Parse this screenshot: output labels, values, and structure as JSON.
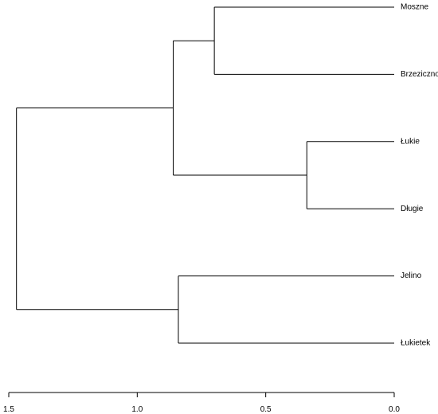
{
  "chart_data": {
    "type": "dendrogram",
    "orientation": "horizontal",
    "x_axis_reversed": true,
    "xlim": [
      1.5,
      0.0
    ],
    "x_ticks": [
      1.5,
      1.0,
      0.5,
      0.0
    ],
    "x_tick_labels": [
      "1.5",
      "1.0",
      "0.5",
      "0.0"
    ],
    "leaves": [
      "Moszne",
      "Brzeziczno",
      "Łukie",
      "Długie",
      "Jelino",
      "Łukietek"
    ],
    "merges": [
      {
        "left": "Moszne",
        "right": "Brzeziczno",
        "height": 0.7
      },
      {
        "left": "Łukie",
        "right": "Długie",
        "height": 0.34
      },
      {
        "left": "Moszne+Brzeziczno",
        "right": "Łukie+Długie",
        "height": 0.86
      },
      {
        "left": "Jelino",
        "right": "Łukietek",
        "height": 0.84
      },
      {
        "left": "Moszne+Brzeziczno+Łukie+Długie",
        "right": "Jelino+Łukietek",
        "height": 1.47
      }
    ],
    "tree": {
      "height": 1.47,
      "children": [
        {
          "height": 0.86,
          "children": [
            {
              "height": 0.7,
              "children": [
                {
                  "leaf": 0
                },
                {
                  "leaf": 1
                }
              ]
            },
            {
              "height": 0.34,
              "children": [
                {
                  "leaf": 2
                },
                {
                  "leaf": 3
                }
              ]
            }
          ]
        },
        {
          "height": 0.84,
          "children": [
            {
              "leaf": 4
            },
            {
              "leaf": 5
            }
          ]
        }
      ]
    }
  }
}
